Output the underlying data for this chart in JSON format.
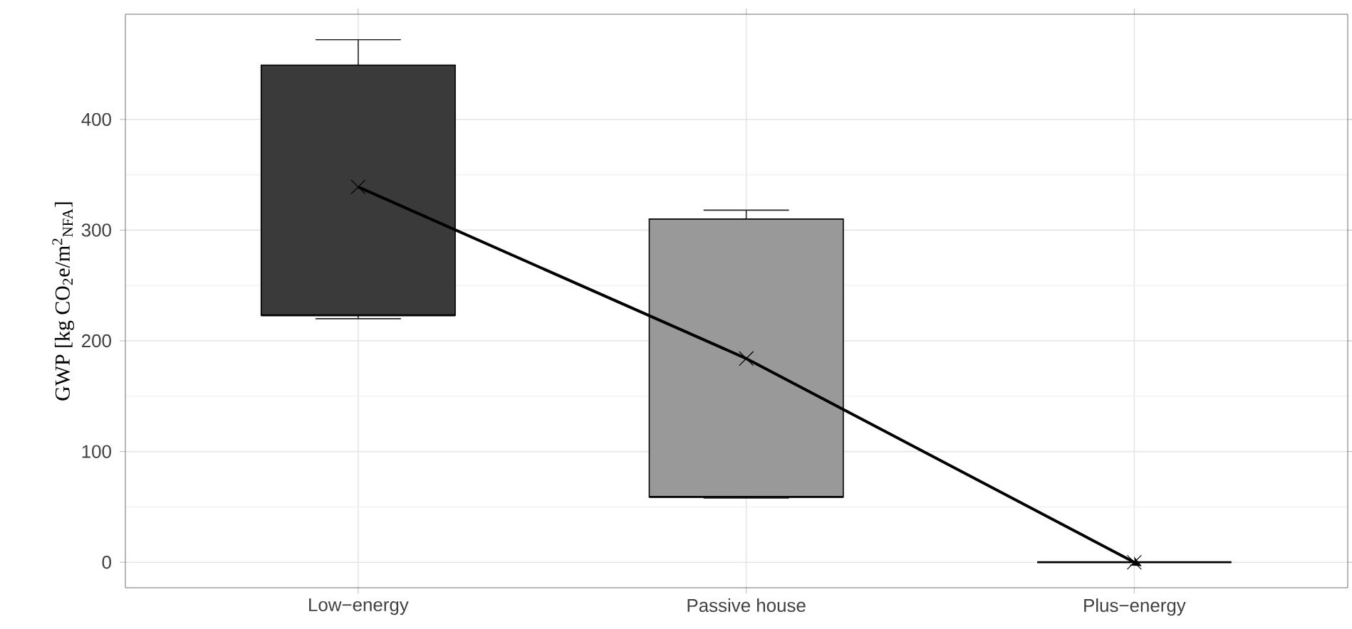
{
  "chart_data": {
    "type": "box",
    "ylabel": "GWP [kg CO$_{2}$e/m$^{2}$$_{NFA}$]",
    "categories": [
      "Low−energy",
      "Passive house",
      "Plus−energy"
    ],
    "series": [
      {
        "colors": [
          "#3a3a3a",
          "#999999",
          "#000000"
        ],
        "boxes": [
          {
            "low": 220,
            "q1": 223,
            "median": 223,
            "q3": 449,
            "high": 472,
            "mean": 339
          },
          {
            "low": 58,
            "q1": 59,
            "median": 59,
            "q3": 310,
            "high": 318,
            "mean": 184
          },
          {
            "low": 0,
            "q1": 0,
            "median": 0,
            "q3": 0,
            "high": 0,
            "mean": 0
          }
        ]
      },
      {
        "type": "line",
        "color": "#000000",
        "values": [
          339,
          184,
          0
        ]
      }
    ],
    "ylim": [
      -23,
      495
    ],
    "yticks": [
      0,
      100,
      200,
      300,
      400
    ],
    "grid": true
  }
}
